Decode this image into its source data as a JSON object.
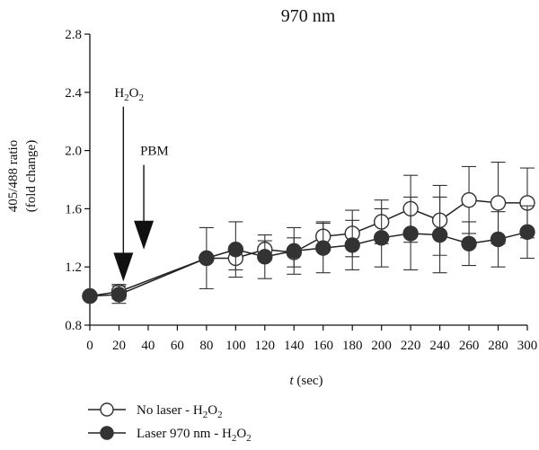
{
  "chart_data": {
    "type": "line",
    "title": "970 nm",
    "xlabel": {
      "var": "t",
      "unit": " (sec)"
    },
    "ylabel": {
      "line1": "405/488 ratio",
      "line2": "(fold change)"
    },
    "x_ticks": [
      0,
      20,
      40,
      60,
      80,
      100,
      120,
      140,
      160,
      180,
      200,
      220,
      240,
      260,
      280,
      300
    ],
    "y_ticks": [
      "0.8",
      "1.2",
      "1.6",
      "2.0",
      "2.4",
      "2.8"
    ],
    "xlim": [
      0,
      300
    ],
    "ylim": [
      0.8,
      2.8
    ],
    "grid": false,
    "legend_position": "bottom-left",
    "series": [
      {
        "name": {
          "prefix": "No laser - H",
          "sub1": "2",
          "mid": "O",
          "sub2": "2"
        },
        "marker": "open-circle",
        "color": "#ffffff",
        "x": [
          0,
          20,
          80,
          100,
          120,
          140,
          160,
          180,
          200,
          220,
          240,
          260,
          280,
          300
        ],
        "y": [
          1.0,
          1.03,
          1.26,
          1.26,
          1.32,
          1.3,
          1.41,
          1.43,
          1.51,
          1.6,
          1.52,
          1.66,
          1.64,
          1.64
        ],
        "err": [
          0.0,
          0.05,
          0.0,
          0.08,
          0.06,
          0.1,
          0.1,
          0.16,
          0.15,
          0.23,
          0.24,
          0.23,
          0.28,
          0.24
        ]
      },
      {
        "name": {
          "prefix": "Laser 970 nm - H",
          "sub1": "2",
          "mid": "O",
          "sub2": "2"
        },
        "marker": "filled-circle",
        "color": "#333333",
        "x": [
          0,
          20,
          80,
          100,
          120,
          140,
          160,
          180,
          200,
          220,
          240,
          260,
          280,
          300
        ],
        "y": [
          1.0,
          1.01,
          1.26,
          1.32,
          1.27,
          1.31,
          1.33,
          1.35,
          1.4,
          1.43,
          1.42,
          1.36,
          1.39,
          1.44
        ],
        "err": [
          0.0,
          0.06,
          0.21,
          0.19,
          0.15,
          0.16,
          0.17,
          0.17,
          0.2,
          0.25,
          0.26,
          0.15,
          0.19,
          0.18
        ]
      }
    ],
    "annotations": [
      {
        "label": {
          "prefix": "H",
          "sub1": "2",
          "mid": "O",
          "sub2": "2"
        },
        "x": 23,
        "arrow_top": 2.4,
        "tip": 1.1
      },
      {
        "label": {
          "text": "PBM"
        },
        "x": 37,
        "arrow_top": 2.0,
        "tip": 1.32
      }
    ]
  }
}
